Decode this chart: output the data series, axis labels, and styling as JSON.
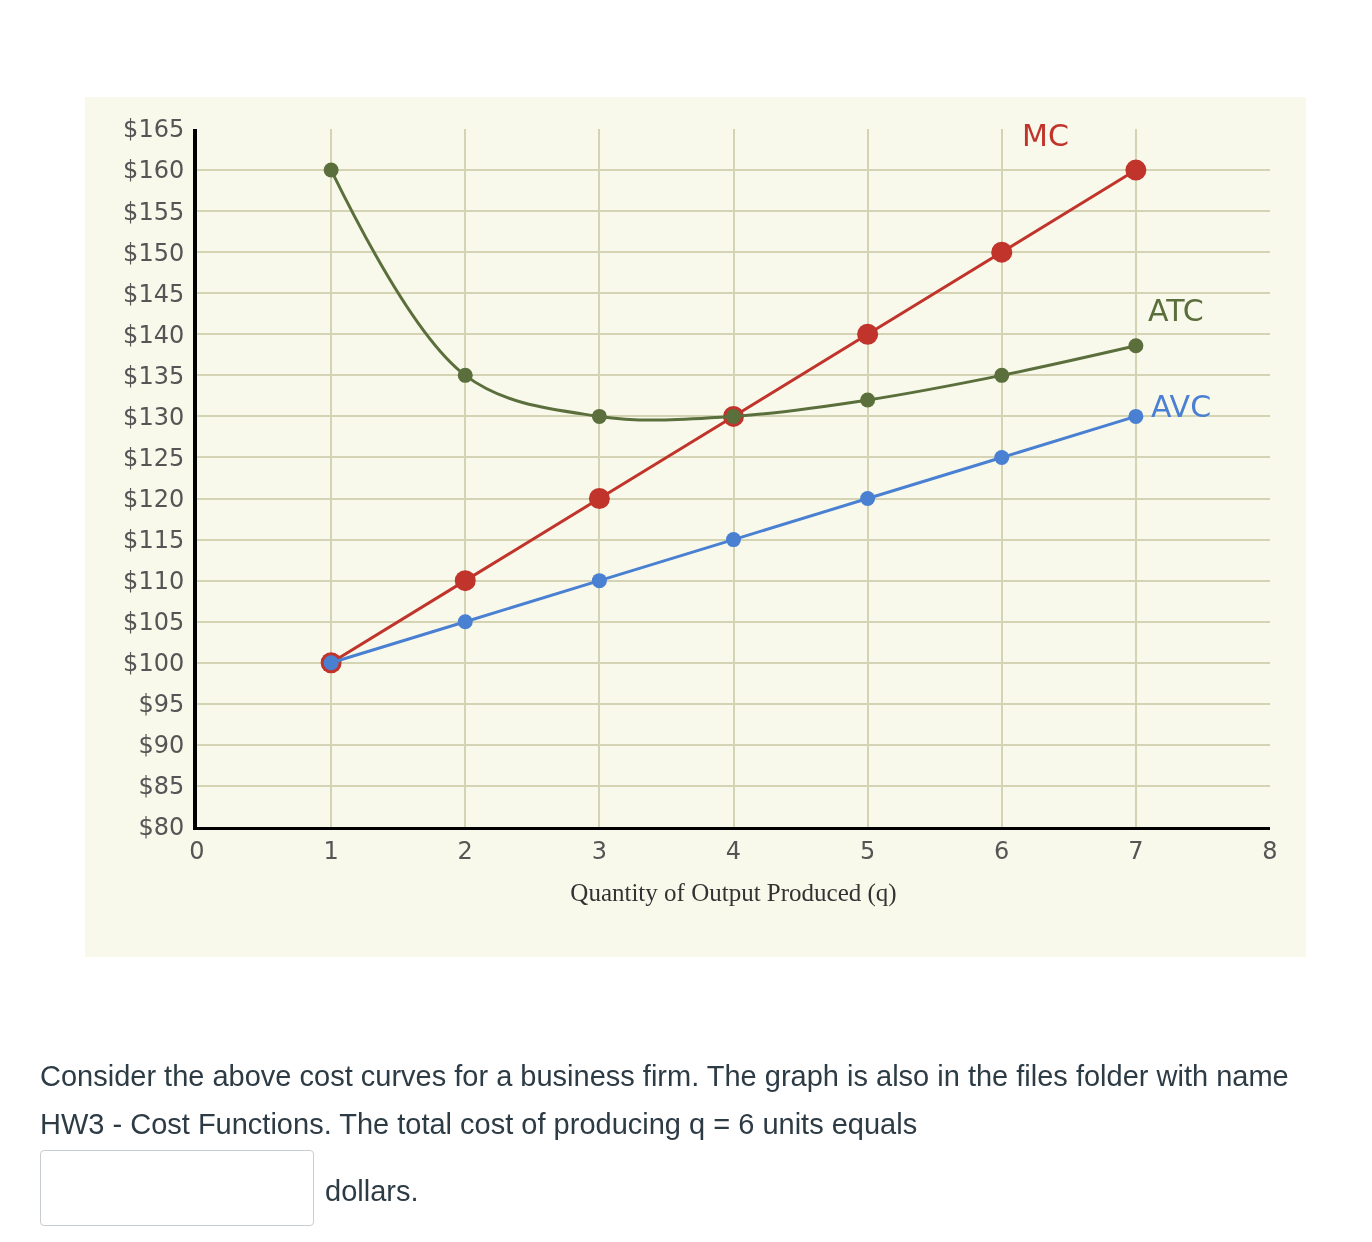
{
  "chart_data": {
    "type": "line",
    "xlabel": "Quantity of Output Produced (q)",
    "x": [
      1,
      2,
      3,
      4,
      5,
      6,
      7
    ],
    "series": [
      {
        "name": "MC",
        "color": "#c0342b",
        "values": [
          100,
          110,
          120,
          130,
          140,
          150,
          160
        ]
      },
      {
        "name": "ATC",
        "color": "#5b6f3c",
        "values": [
          160,
          135,
          130,
          130,
          132,
          135,
          138.6
        ]
      },
      {
        "name": "AVC",
        "color": "#4a80d2",
        "values": [
          100,
          105,
          110,
          115,
          120,
          125,
          130
        ]
      }
    ],
    "xlim": [
      0,
      8
    ],
    "xticks": [
      0,
      1,
      2,
      3,
      4,
      5,
      6,
      7,
      8
    ],
    "ylim": [
      80,
      165
    ],
    "yticks": [
      {
        "value": 80,
        "label": "$80"
      },
      {
        "value": 85,
        "label": "$85"
      },
      {
        "value": 90,
        "label": "$90"
      },
      {
        "value": 95,
        "label": "$95"
      },
      {
        "value": 100,
        "label": "$100"
      },
      {
        "value": 105,
        "label": "$105"
      },
      {
        "value": 110,
        "label": "$110"
      },
      {
        "value": 115,
        "label": "$115"
      },
      {
        "value": 120,
        "label": "$120"
      },
      {
        "value": 125,
        "label": "$125"
      },
      {
        "value": 130,
        "label": "$130"
      },
      {
        "value": 135,
        "label": "$135"
      },
      {
        "value": 140,
        "label": "$140"
      },
      {
        "value": 145,
        "label": "$145"
      },
      {
        "value": 150,
        "label": "$150"
      },
      {
        "value": 155,
        "label": "$155"
      },
      {
        "value": 160,
        "label": "$160"
      },
      {
        "value": 165,
        "label": "$165"
      }
    ],
    "grid": true,
    "legend": false,
    "marker": "circle",
    "line_style": "solid",
    "annotations": [
      "Consider the above cost curves for a business firm. The graph is also in the files folder with name HW3 - Cost Functions. The total cost of producing q = 6 units equals",
      "dollars."
    ]
  }
}
